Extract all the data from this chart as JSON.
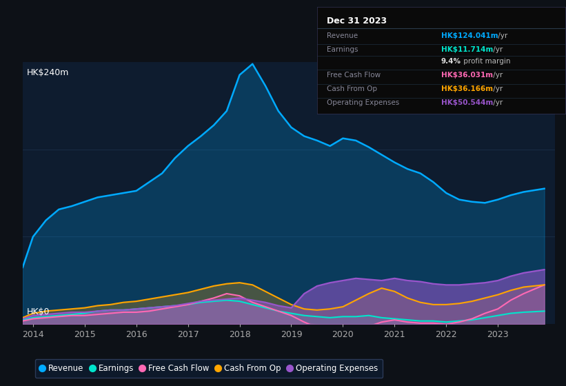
{
  "bg_color": "#0d1117",
  "plot_bg_color": "#0e1c2f",
  "grid_color": "#1a2d45",
  "years": [
    2013.8,
    2014.0,
    2014.25,
    2014.5,
    2014.75,
    2015.0,
    2015.25,
    2015.5,
    2015.75,
    2016.0,
    2016.25,
    2016.5,
    2016.75,
    2017.0,
    2017.25,
    2017.5,
    2017.75,
    2018.0,
    2018.25,
    2018.5,
    2018.75,
    2019.0,
    2019.25,
    2019.5,
    2019.75,
    2020.0,
    2020.25,
    2020.5,
    2020.75,
    2021.0,
    2021.25,
    2021.5,
    2021.75,
    2022.0,
    2022.25,
    2022.5,
    2022.75,
    2023.0,
    2023.25,
    2023.5,
    2023.9
  ],
  "revenue": [
    52,
    80,
    95,
    105,
    108,
    112,
    116,
    118,
    120,
    122,
    130,
    138,
    152,
    163,
    172,
    182,
    195,
    228,
    238,
    218,
    195,
    180,
    172,
    168,
    163,
    170,
    168,
    162,
    155,
    148,
    142,
    138,
    130,
    120,
    114,
    112,
    111,
    114,
    118,
    121,
    124
  ],
  "earnings": [
    4,
    6,
    7,
    8,
    9,
    10,
    12,
    13,
    13,
    14,
    15,
    16,
    17,
    18,
    20,
    21,
    22,
    21,
    18,
    15,
    12,
    10,
    8,
    7,
    6,
    7,
    7,
    8,
    6,
    5,
    4,
    3,
    3,
    2,
    3,
    4,
    6,
    8,
    10,
    11,
    12
  ],
  "free_cash_flow": [
    3,
    5,
    6,
    7,
    8,
    8,
    9,
    10,
    11,
    11,
    12,
    14,
    16,
    18,
    21,
    24,
    28,
    26,
    20,
    16,
    12,
    8,
    2,
    -3,
    -7,
    -9,
    -6,
    -2,
    2,
    4,
    2,
    1,
    1,
    0,
    2,
    5,
    10,
    14,
    22,
    28,
    36
  ],
  "cash_from_op": [
    6,
    10,
    12,
    13,
    14,
    15,
    17,
    18,
    20,
    21,
    23,
    25,
    27,
    29,
    32,
    35,
    37,
    38,
    36,
    30,
    24,
    18,
    14,
    13,
    14,
    16,
    22,
    28,
    33,
    30,
    24,
    20,
    18,
    18,
    19,
    21,
    24,
    27,
    31,
    34,
    36
  ],
  "operating_expenses": [
    5,
    8,
    9,
    10,
    11,
    11,
    12,
    13,
    13,
    14,
    15,
    16,
    17,
    19,
    21,
    22,
    23,
    24,
    22,
    20,
    17,
    15,
    28,
    35,
    38,
    40,
    42,
    41,
    40,
    42,
    40,
    39,
    37,
    36,
    36,
    37,
    38,
    40,
    44,
    47,
    50
  ],
  "revenue_color": "#00aaff",
  "earnings_color": "#00e5cc",
  "fcf_color": "#ff69b4",
  "cashop_color": "#ffa500",
  "opex_color": "#9955cc",
  "ylabel_text": "HK$240m",
  "y0_text": "HK$0",
  "ylim": [
    0,
    240
  ],
  "xlim": [
    2013.8,
    2024.1
  ],
  "xticks": [
    2014,
    2015,
    2016,
    2017,
    2018,
    2019,
    2020,
    2021,
    2022,
    2023
  ],
  "grid_yticks": [
    80,
    160
  ],
  "info_box": {
    "title": "Dec 31 2023",
    "rows": [
      {
        "label": "Revenue",
        "value": "HK$124.041m",
        "suffix": " /yr",
        "color": "#00aaff"
      },
      {
        "label": "Earnings",
        "value": "HK$11.714m",
        "suffix": " /yr",
        "color": "#00e5cc"
      },
      {
        "label": "",
        "value": "9.4%",
        "suffix": " profit margin",
        "color": "#dddddd"
      },
      {
        "label": "Free Cash Flow",
        "value": "HK$36.031m",
        "suffix": " /yr",
        "color": "#ff69b4"
      },
      {
        "label": "Cash From Op",
        "value": "HK$36.166m",
        "suffix": " /yr",
        "color": "#ffa500"
      },
      {
        "label": "Operating Expenses",
        "value": "HK$50.544m",
        "suffix": " /yr",
        "color": "#9955cc"
      }
    ]
  },
  "legend": [
    {
      "label": "Revenue",
      "color": "#00aaff"
    },
    {
      "label": "Earnings",
      "color": "#00e5cc"
    },
    {
      "label": "Free Cash Flow",
      "color": "#ff69b4"
    },
    {
      "label": "Cash From Op",
      "color": "#ffa500"
    },
    {
      "label": "Operating Expenses",
      "color": "#9955cc"
    }
  ]
}
